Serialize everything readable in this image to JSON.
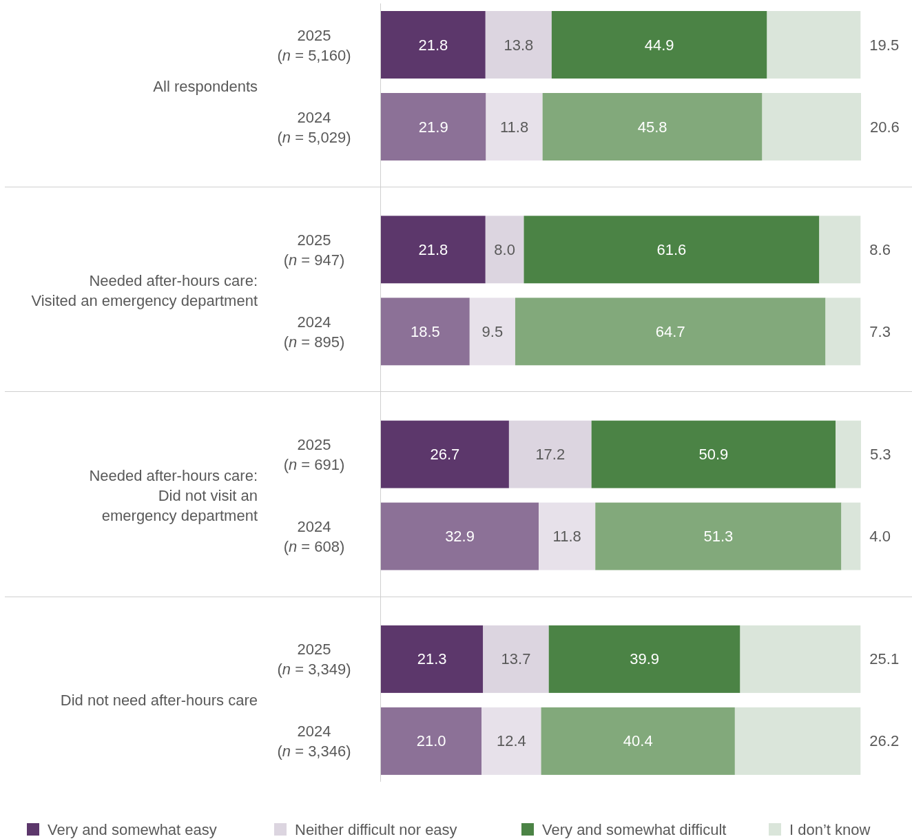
{
  "chart_data": {
    "type": "bar",
    "orientation": "horizontal",
    "stacked": true,
    "legend": "bottom",
    "tick_labels": "y",
    "categories": [
      "2025\n(n = 5,160)",
      "2024\n(n = 5,029)",
      "2025\n(n = 947)",
      "2024\n(n = 895)",
      "2025\n(n = 691)",
      "2024\n(n = 608)",
      "2025\n(n = 3,349)",
      "2024\n(n = 3,346)"
    ],
    "annotations": [
      "All respondents",
      "Needed after-hours care:\nVisited an emergency department",
      "Needed after-hours care:\nDid not visit an\nemergency department",
      "Did not need after-hours care"
    ],
    "series": [
      {
        "name": "Very and somewhat easy",
        "color": "#5c376b",
        "colors": [
          "#5c376b",
          "#8c7197",
          "#5c376b",
          "#8c7197",
          "#5c376b",
          "#8c7197",
          "#5c376b",
          "#8c7197"
        ],
        "values": [
          21.8,
          21.9,
          21.8,
          18.5,
          26.7,
          32.9,
          21.3,
          21.0
        ],
        "value_labels": [
          "21.8",
          "21.9",
          "21.8",
          "18.5",
          "26.7",
          "32.9",
          "21.3",
          "21.0"
        ]
      },
      {
        "name": "Neither difficult nor easy",
        "color": "#dcd5e0",
        "colors": [
          "#dcd5e0",
          "#e7e1ea",
          "#dcd5e0",
          "#e7e1ea",
          "#dcd5e0",
          "#e7e1ea",
          "#dcd5e0",
          "#e7e1ea"
        ],
        "values": [
          13.8,
          11.8,
          8.0,
          9.5,
          17.2,
          11.8,
          13.7,
          12.4
        ],
        "value_labels": [
          "13.8",
          "11.8",
          "8.0",
          "9.5",
          "17.2",
          "11.8",
          "13.7",
          "12.4"
        ]
      },
      {
        "name": "Very and somewhat difficult",
        "color": "#4b8345",
        "colors": [
          "#4b8345",
          "#82a97b",
          "#4b8345",
          "#82a97b",
          "#4b8345",
          "#82a97b",
          "#4b8345",
          "#82a97b"
        ],
        "values": [
          44.9,
          45.8,
          61.6,
          64.7,
          50.9,
          51.3,
          39.9,
          40.4
        ],
        "value_labels": [
          "44.9",
          "45.8",
          "61.6",
          "64.7",
          "50.9",
          "51.3",
          "39.9",
          "40.4"
        ]
      },
      {
        "name": "I don’t know",
        "color": "#dae5da",
        "colors": [
          "#dae5da",
          "#dae5da",
          "#dae5da",
          "#dae5da",
          "#dae5da",
          "#dae5da",
          "#dae5da",
          "#dae5da"
        ],
        "values": [
          19.5,
          20.6,
          8.6,
          7.3,
          5.3,
          4.0,
          25.1,
          26.2
        ],
        "value_labels": [
          "19.5",
          "20.6",
          "8.6",
          "7.3",
          "5.3",
          "4.0",
          "25.1",
          "26.2"
        ]
      }
    ]
  }
}
